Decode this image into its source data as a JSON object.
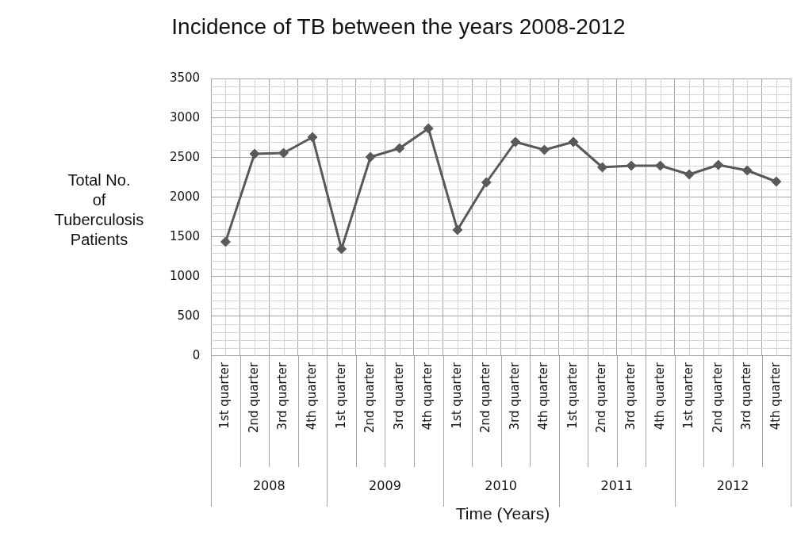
{
  "chart_data": {
    "type": "line",
    "title": "Incidence of TB between the years 2008-2012",
    "xlabel": "Time (Years)",
    "ylabel": "Total No.\nof\nTuberculosis\nPatients",
    "categories": [
      "1st quarter",
      "2nd quarter",
      "3rd quarter",
      "4th quarter",
      "1st quarter",
      "2nd quarter",
      "3rd quarter",
      "4th quarter",
      "1st quarter",
      "2nd quarter",
      "3rd quarter",
      "4th quarter",
      "1st quarter",
      "2nd quarter",
      "3rd quarter",
      "4th quarter",
      "1st quarter",
      "2nd quarter",
      "3rd quarter",
      "4th quarter"
    ],
    "series": [
      {
        "color": "#595959",
        "values": [
          1440,
          2550,
          2560,
          2760,
          1350,
          2510,
          2620,
          2870,
          1590,
          2190,
          2700,
          2600,
          2700,
          2380,
          2400,
          2400,
          2290,
          2410,
          2340,
          2200
        ]
      }
    ],
    "annotations": [
      "2008",
      "2009",
      "2010",
      "2011",
      "2012"
    ],
    "ylim": [
      0,
      3500
    ],
    "yticks": [
      0,
      500,
      1000,
      1500,
      2000,
      2500,
      3000,
      3500
    ],
    "grid": true,
    "legend": false,
    "marker": "diamond",
    "line_style": "solid"
  }
}
